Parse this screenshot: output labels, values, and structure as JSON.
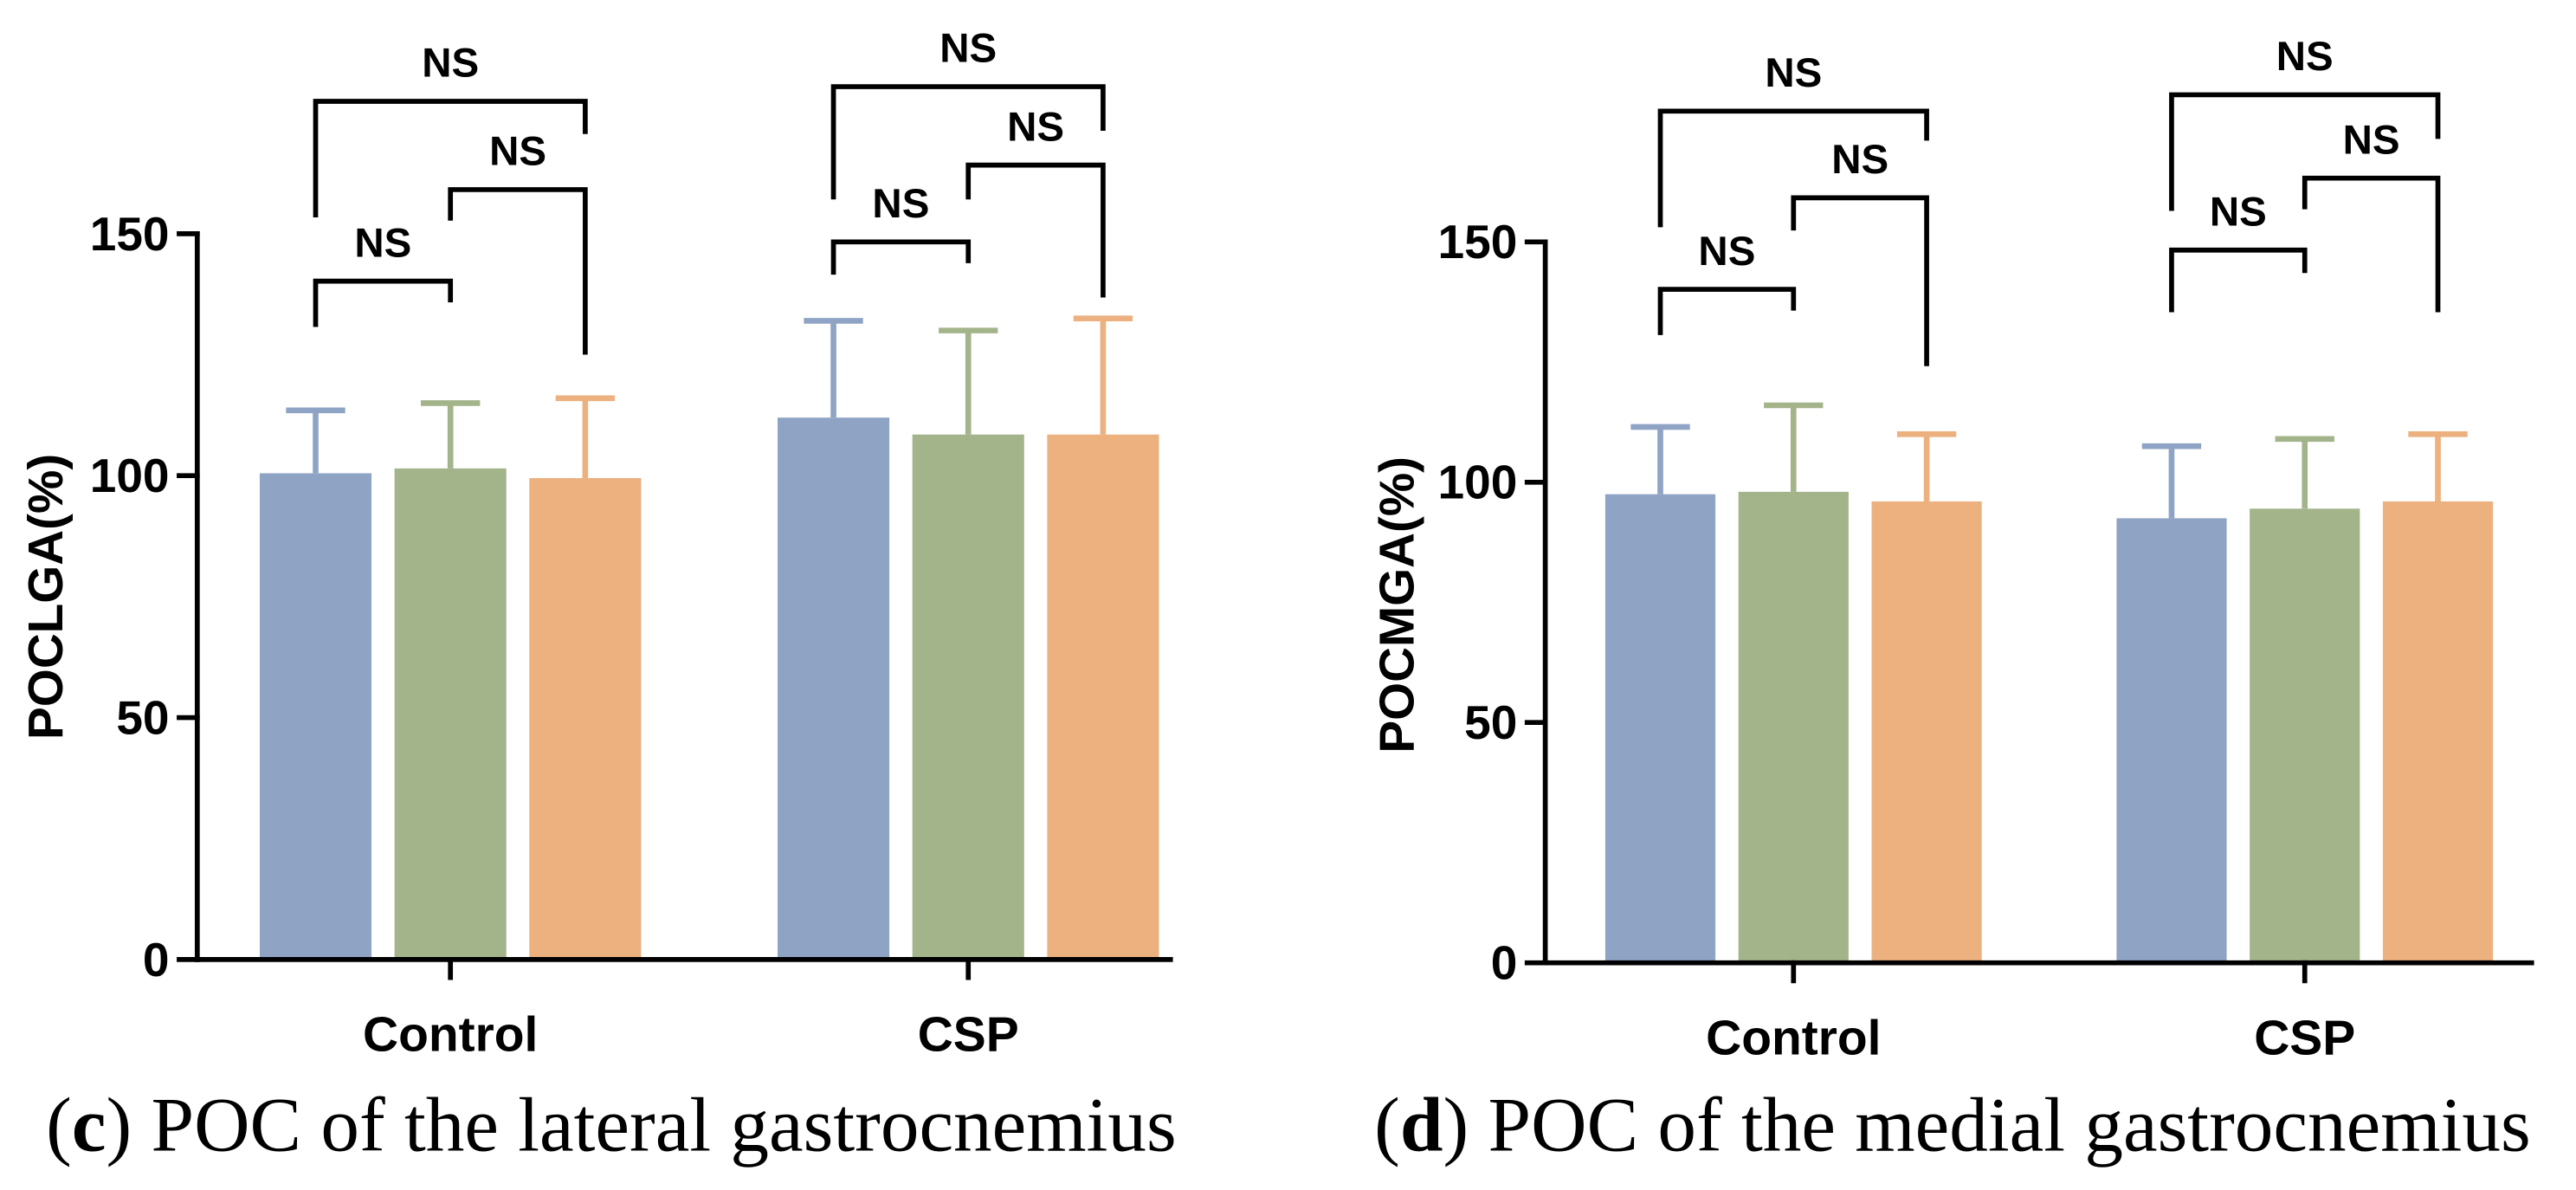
{
  "chart_data": [
    {
      "type": "bar",
      "caption": {
        "open": "(",
        "letter": "c",
        "rest": ") POC of the lateral gastrocnemius"
      },
      "ylabel": "POCLGA(%)",
      "ylim": [
        0,
        150
      ],
      "yticks": [
        0,
        50,
        100,
        150
      ],
      "categories": [
        "Control",
        "CSP"
      ],
      "series": [
        {
          "color": "#8FA4C4",
          "values": [
            100.5,
            112.0
          ],
          "sd": [
            13.0,
            20.0
          ]
        },
        {
          "color": "#A3B48B",
          "values": [
            101.5,
            108.5
          ],
          "sd": [
            13.5,
            21.5
          ]
        },
        {
          "color": "#ECB17F",
          "values": [
            99.5,
            108.5
          ],
          "sd": [
            16.5,
            24.0
          ]
        }
      ],
      "comparisons": [
        {
          "category": 0,
          "pair": [
            0,
            1
          ],
          "label": "NS"
        },
        {
          "category": 0,
          "pair": [
            1,
            2
          ],
          "label": "NS"
        },
        {
          "category": 0,
          "pair": [
            0,
            2
          ],
          "label": "NS"
        },
        {
          "category": 1,
          "pair": [
            0,
            1
          ],
          "label": "NS"
        },
        {
          "category": 1,
          "pair": [
            1,
            2
          ],
          "label": "NS"
        },
        {
          "category": 1,
          "pair": [
            0,
            2
          ],
          "label": "NS"
        }
      ]
    },
    {
      "type": "bar",
      "caption": {
        "open": "(",
        "letter": "d",
        "rest": ") POC of the medial gastrocnemius"
      },
      "ylabel": "POCMGA(%)",
      "ylim": [
        0,
        150
      ],
      "yticks": [
        0,
        50,
        100,
        150
      ],
      "categories": [
        "Control",
        "CSP"
      ],
      "series": [
        {
          "color": "#8FA4C4",
          "values": [
            97.5,
            92.5
          ],
          "sd": [
            14.0,
            15.0
          ]
        },
        {
          "color": "#A3B48B",
          "values": [
            98.0,
            94.5
          ],
          "sd": [
            18.0,
            14.5
          ]
        },
        {
          "color": "#ECB17F",
          "values": [
            96.0,
            96.0
          ],
          "sd": [
            14.0,
            14.0
          ]
        }
      ],
      "comparisons": [
        {
          "category": 0,
          "pair": [
            0,
            1
          ],
          "label": "NS"
        },
        {
          "category": 0,
          "pair": [
            1,
            2
          ],
          "label": "NS"
        },
        {
          "category": 0,
          "pair": [
            0,
            2
          ],
          "label": "NS"
        },
        {
          "category": 1,
          "pair": [
            0,
            1
          ],
          "label": "NS"
        },
        {
          "category": 1,
          "pair": [
            1,
            2
          ],
          "label": "NS"
        },
        {
          "category": 1,
          "pair": [
            0,
            2
          ],
          "label": "NS"
        }
      ]
    }
  ]
}
